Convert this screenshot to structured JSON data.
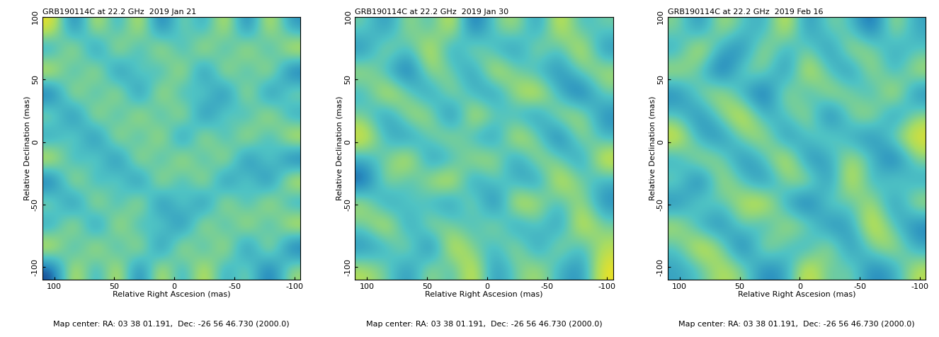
{
  "chart_data": [
    {
      "type": "heatmap",
      "title": "GRB190114C at 22.2 GHz  2019 Jan 21",
      "x_label": "Relative Right Ascesion (mas)",
      "y_label": "Relative Declination (mas)",
      "caption": "Map center: RA: 03 38 01.191,  Dec: -26 56 46.730 (2000.0)",
      "xlim": [
        110,
        -105
      ],
      "ylim": [
        -110,
        100
      ],
      "xticks": [
        100,
        50,
        0,
        -50,
        -100
      ],
      "yticks": [
        -100,
        -50,
        0,
        50,
        100
      ],
      "cells": [
        [
          2,
          -2,
          2,
          -1,
          2,
          -2,
          1,
          -1,
          2,
          -2,
          2,
          -1
        ],
        [
          -1,
          2,
          -2,
          2,
          -1,
          2,
          -1,
          2,
          -1,
          2,
          -1,
          2
        ],
        [
          2,
          -1,
          2,
          -2,
          1,
          -1,
          2,
          -2,
          2,
          -1,
          2,
          -2
        ],
        [
          -2,
          2,
          -1,
          2,
          -2,
          2,
          -1,
          1,
          -2,
          2,
          -2,
          1
        ],
        [
          1,
          -2,
          2,
          -1,
          2,
          -1,
          2,
          -2,
          1,
          -1,
          2,
          -1
        ],
        [
          -1,
          1,
          -2,
          2,
          -1,
          2,
          -2,
          2,
          -1,
          2,
          -1,
          2
        ],
        [
          2,
          -1,
          1,
          -2,
          2,
          -1,
          2,
          -1,
          2,
          -2,
          1,
          -2
        ],
        [
          -2,
          2,
          -1,
          1,
          -2,
          2,
          -1,
          2,
          -2,
          1,
          -2,
          2
        ],
        [
          1,
          -2,
          2,
          -1,
          2,
          -2,
          1,
          -2,
          2,
          -1,
          2,
          -1
        ],
        [
          -1,
          2,
          -2,
          2,
          -1,
          1,
          -2,
          2,
          -1,
          2,
          -1,
          2
        ],
        [
          2,
          -1,
          2,
          -1,
          2,
          -2,
          2,
          -1,
          2,
          -2,
          2,
          -2
        ],
        [
          -2,
          2,
          -1,
          2,
          -2,
          2,
          -1,
          2,
          -1,
          1,
          -2,
          1
        ]
      ]
    },
    {
      "type": "heatmap",
      "title": "GRB190114C at 22.2 GHz  2019 Jan 30",
      "x_label": "Relative Right Ascesion (mas)",
      "y_label": "Relative Declination (mas)",
      "caption": "Map center: RA: 03 38 01.191,  Dec: -26 56 46.730 (2000.0)",
      "xlim": [
        110,
        -105
      ],
      "ylim": [
        -110,
        100
      ],
      "xticks": [
        100,
        50,
        0,
        -50,
        -100
      ],
      "yticks": [
        -100,
        -50,
        0,
        50,
        100
      ],
      "cells": [
        [
          0,
          -2,
          1,
          -1,
          2,
          -3,
          0,
          1,
          -2,
          2,
          -1,
          0
        ],
        [
          -2,
          1,
          -1,
          2,
          -2,
          1,
          -1,
          -2,
          1,
          -1,
          2,
          -2
        ],
        [
          1,
          -1,
          -3,
          1,
          0,
          -2,
          2,
          0,
          -1,
          -2,
          0,
          1
        ],
        [
          -1,
          2,
          0,
          -2,
          1,
          -1,
          -2,
          1,
          2,
          -1,
          -3,
          0
        ],
        [
          0,
          -2,
          1,
          1,
          -3,
          2,
          0,
          -1,
          -2,
          1,
          1,
          -2
        ],
        [
          2,
          -1,
          -2,
          0,
          1,
          -1,
          -2,
          2,
          0,
          -3,
          1,
          -1
        ],
        [
          -1,
          0,
          2,
          -2,
          -1,
          1,
          1,
          -2,
          1,
          0,
          -2,
          2
        ],
        [
          -3,
          1,
          -1,
          1,
          2,
          -2,
          0,
          -1,
          -2,
          2,
          0,
          -1
        ],
        [
          1,
          -2,
          0,
          -1,
          -2,
          1,
          -3,
          2,
          1,
          -1,
          1,
          -2
        ],
        [
          0,
          2,
          -2,
          1,
          0,
          -1,
          1,
          -2,
          0,
          -2,
          2,
          0
        ],
        [
          -2,
          -1,
          1,
          -3,
          2,
          0,
          -1,
          1,
          -2,
          1,
          -1,
          1
        ],
        [
          1,
          0,
          -2,
          1,
          -1,
          2,
          -2,
          0,
          1,
          -1,
          -2,
          2
        ]
      ]
    },
    {
      "type": "heatmap",
      "title": "GRB190114C at 22.2 GHz  2019 Feb 16",
      "x_label": "Relative Right Ascesion (mas)",
      "y_label": "Relative Declination (mas)",
      "caption": "Map center: RA: 03 38 01.191,  Dec: -26 56 46.730 (2000.0)",
      "xlim": [
        110,
        -105
      ],
      "ylim": [
        -110,
        100
      ],
      "xticks": [
        100,
        50,
        0,
        -50,
        -100
      ],
      "yticks": [
        -100,
        -50,
        0,
        50,
        100
      ],
      "cells": [
        [
          1,
          -2,
          2,
          0,
          -1,
          3,
          -2,
          1,
          0,
          -3,
          2,
          -1
        ],
        [
          -1,
          3,
          -1,
          -2,
          2,
          -1,
          1,
          -2,
          2,
          1,
          -1,
          0
        ],
        [
          2,
          0,
          -3,
          1,
          1,
          -2,
          3,
          0,
          -2,
          2,
          -1,
          2
        ],
        [
          -2,
          1,
          2,
          -1,
          -3,
          2,
          -1,
          2,
          1,
          -1,
          3,
          -2
        ],
        [
          0,
          -2,
          1,
          3,
          -1,
          0,
          2,
          -3,
          1,
          2,
          -2,
          1
        ],
        [
          3,
          -1,
          -2,
          1,
          2,
          -2,
          0,
          1,
          -1,
          -2,
          1,
          3
        ],
        [
          -1,
          2,
          1,
          -2,
          0,
          3,
          -2,
          -1,
          2,
          0,
          -3,
          1
        ],
        [
          1,
          -3,
          2,
          0,
          -2,
          1,
          2,
          -2,
          3,
          -1,
          1,
          -1
        ],
        [
          -2,
          1,
          0,
          2,
          3,
          -1,
          -3,
          1,
          0,
          2,
          -2,
          2
        ],
        [
          2,
          -1,
          -2,
          1,
          -1,
          2,
          1,
          -2,
          -1,
          3,
          0,
          -2
        ],
        [
          0,
          3,
          1,
          -3,
          2,
          0,
          -1,
          2,
          -2,
          1,
          2,
          -1
        ],
        [
          -1,
          0,
          2,
          1,
          -2,
          -1,
          3,
          0,
          1,
          -2,
          -1,
          2
        ]
      ]
    }
  ]
}
